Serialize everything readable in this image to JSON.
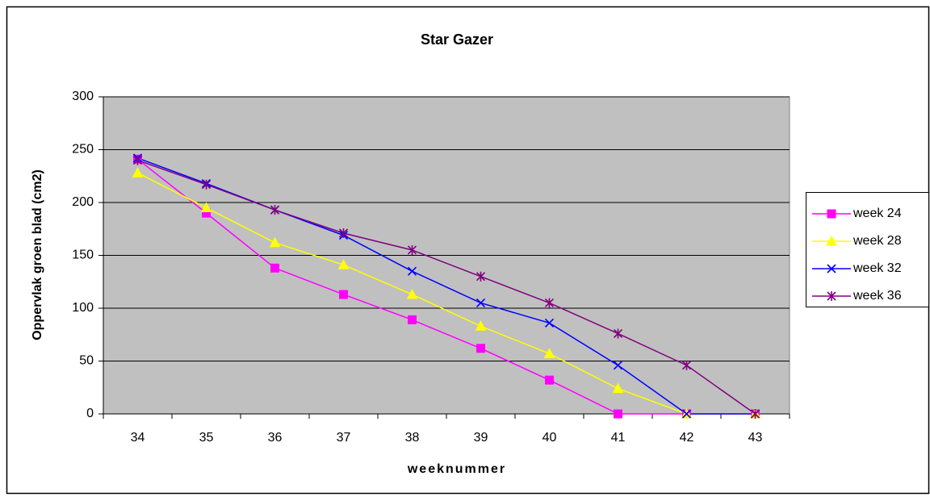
{
  "chart_data": {
    "type": "line",
    "title": "Star Gazer",
    "x_label": "weeknummer",
    "y_label": "Oppervlak groen blad (cm2)",
    "categories": [
      "34",
      "35",
      "36",
      "37",
      "38",
      "39",
      "40",
      "41",
      "42",
      "43"
    ],
    "series": [
      {
        "name": "week 24",
        "color": "#ff00ff",
        "marker": "square",
        "values": [
          241,
          190,
          138,
          113,
          89,
          62,
          32,
          0,
          0,
          0
        ]
      },
      {
        "name": "week 28",
        "color": "#ffff00",
        "marker": "triangle",
        "values": [
          228,
          195,
          162,
          141,
          113,
          83,
          57,
          24,
          0,
          0
        ]
      },
      {
        "name": "week 32",
        "color": "#0000ff",
        "marker": "x",
        "values": [
          242,
          218,
          193,
          169,
          135,
          105,
          86,
          46,
          0,
          0
        ]
      },
      {
        "name": "week 36",
        "color": "#800080",
        "marker": "star",
        "values": [
          240,
          217,
          193,
          171,
          155,
          130,
          105,
          76,
          46,
          0
        ]
      }
    ],
    "ylim": [
      0,
      300
    ],
    "yticks": [
      0,
      50,
      100,
      150,
      200,
      250,
      300
    ],
    "grid": true,
    "legend": "right",
    "plot_background": "#c0c0c0"
  }
}
